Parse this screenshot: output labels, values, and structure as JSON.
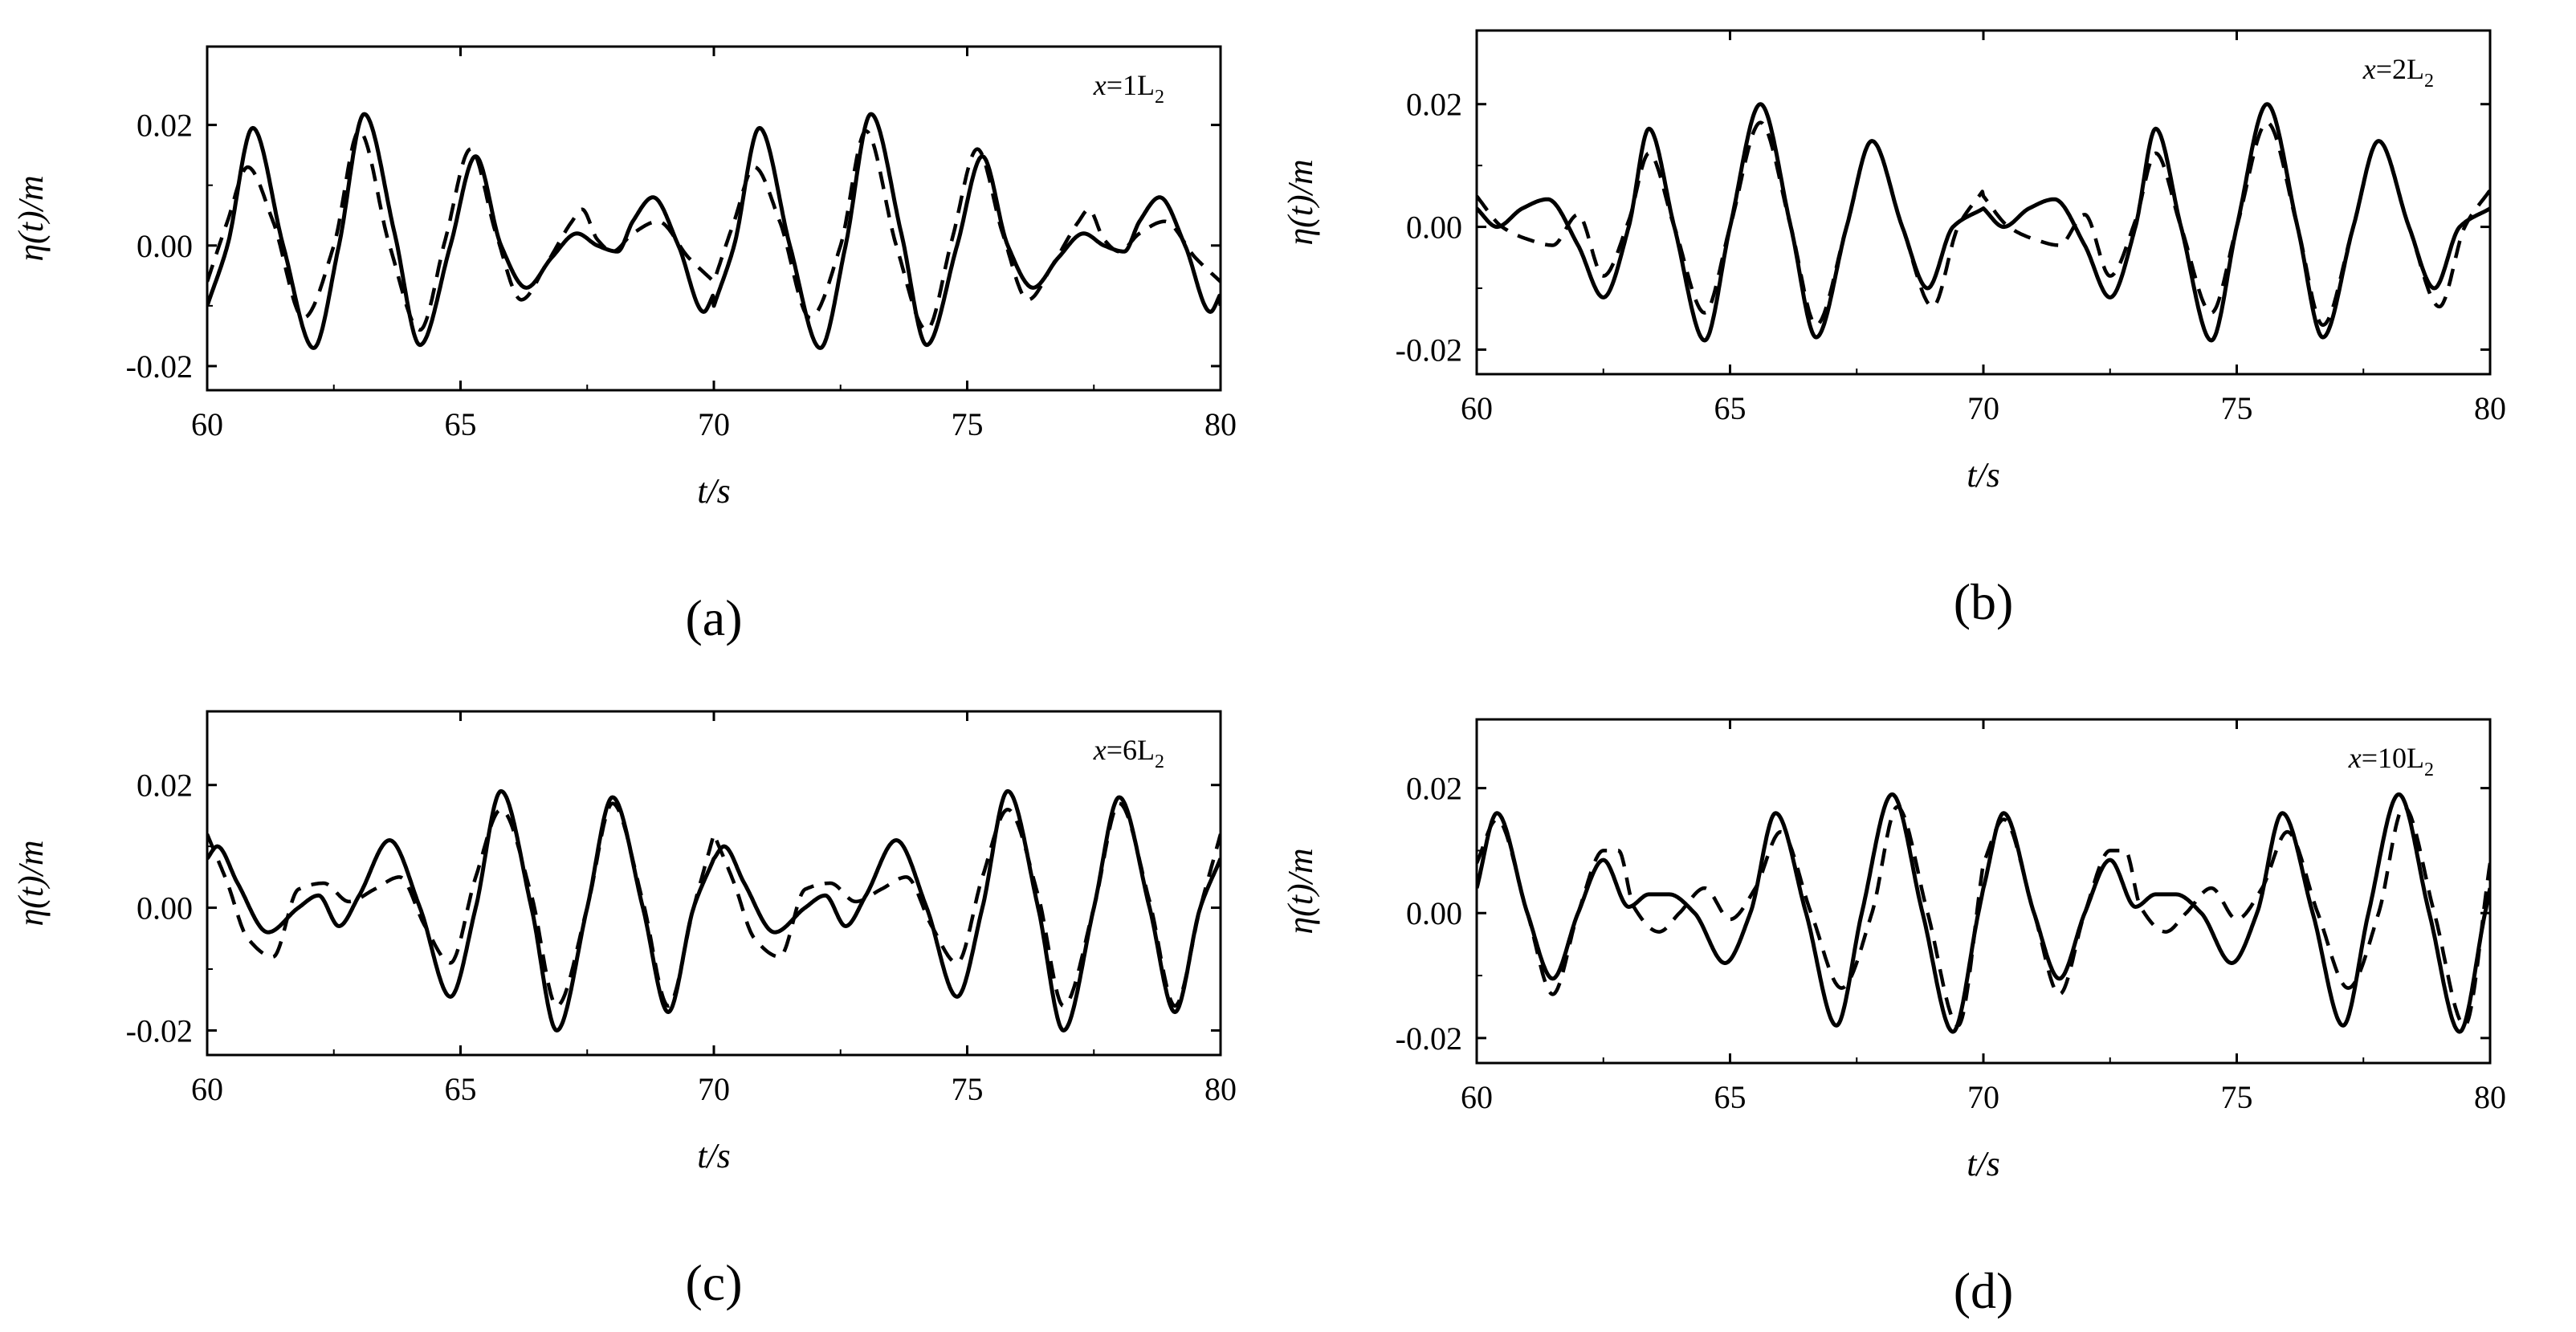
{
  "figure": {
    "description_note": "Four panels of surface elevation time series, solid and dashed curves",
    "line_color": "#000000"
  },
  "chart_data": [
    {
      "type": "line",
      "panel_label": "(a)",
      "annotation": {
        "prefix": "x",
        "eq": "=1L",
        "sub": "2"
      },
      "xlabel": "t/s",
      "ylabel": "η(t)/m",
      "xlim": [
        60,
        80
      ],
      "ylim": [
        -0.024,
        0.033
      ],
      "xticks": [
        60,
        65,
        70,
        75,
        80
      ],
      "xtick_labels": [
        "60",
        "65",
        "70",
        "75",
        "80"
      ],
      "yticks": [
        -0.02,
        0.0,
        0.02
      ],
      "ytick_labels": [
        "-0.02",
        "0.00",
        "0.02"
      ],
      "period": 10,
      "series": [
        {
          "name": "solid",
          "style": "solid",
          "x": [
            60.0,
            60.4,
            60.9,
            61.5,
            62.1,
            62.6,
            63.1,
            63.7,
            64.2,
            64.8,
            65.3,
            65.8,
            66.3,
            66.8,
            67.3,
            67.7,
            68.1,
            68.4,
            68.8,
            69.3,
            69.8,
            70.0
          ],
          "y": [
            -0.01,
            0.0,
            0.0195,
            0.0,
            -0.017,
            0.0,
            0.0218,
            0.002,
            -0.0165,
            0.0,
            0.0148,
            0.0,
            -0.007,
            -0.002,
            0.002,
            0.0,
            -0.001,
            0.004,
            0.008,
            0.0,
            -0.011,
            -0.008
          ]
        },
        {
          "name": "dashed",
          "style": "dashed",
          "x": [
            60.0,
            60.4,
            60.8,
            61.3,
            61.9,
            62.5,
            63.0,
            63.6,
            64.2,
            64.7,
            65.2,
            65.7,
            66.2,
            66.7,
            67.2,
            67.4,
            67.7,
            68.0,
            68.4,
            68.9,
            69.5,
            70.0
          ],
          "y": [
            -0.006,
            0.004,
            0.013,
            0.004,
            -0.012,
            0.0,
            0.019,
            0.0,
            -0.014,
            0.001,
            0.016,
            0.002,
            -0.009,
            -0.003,
            0.004,
            0.006,
            0.001,
            -0.001,
            0.002,
            0.004,
            -0.002,
            -0.006
          ]
        }
      ]
    },
    {
      "type": "line",
      "panel_label": "(b)",
      "annotation": {
        "prefix": "x",
        "eq": "=2L",
        "sub": "2"
      },
      "xlabel": "t/s",
      "ylabel": "η(t)/m",
      "xlim": [
        60,
        80
      ],
      "ylim": [
        -0.024,
        0.032
      ],
      "xticks": [
        60,
        65,
        70,
        75,
        80
      ],
      "xtick_labels": [
        "60",
        "65",
        "70",
        "75",
        "80"
      ],
      "yticks": [
        -0.02,
        0.0,
        0.02
      ],
      "ytick_labels": [
        "-0.02",
        "0.00",
        "0.02"
      ],
      "period": 10,
      "series": [
        {
          "name": "solid",
          "style": "solid",
          "x": [
            60.0,
            60.4,
            60.9,
            61.4,
            62.0,
            62.5,
            63.0,
            63.4,
            63.9,
            64.5,
            65.0,
            65.6,
            66.2,
            66.7,
            67.3,
            67.8,
            68.4,
            68.9,
            69.4,
            70.0
          ],
          "y": [
            0.003,
            0.0,
            0.003,
            0.0045,
            -0.003,
            -0.0115,
            0.0,
            0.016,
            0.0,
            -0.0185,
            0.0,
            0.02,
            0.0,
            -0.018,
            0.0,
            0.014,
            0.0,
            -0.01,
            0.0,
            0.003
          ]
        },
        {
          "name": "dashed",
          "style": "dashed",
          "x": [
            60.0,
            60.5,
            61.0,
            61.5,
            62.0,
            62.5,
            63.0,
            63.4,
            63.9,
            64.5,
            65.0,
            65.6,
            66.2,
            66.7,
            67.3,
            67.8,
            68.4,
            69.0,
            69.5,
            70.0
          ],
          "y": [
            0.005,
            0.0,
            -0.002,
            -0.003,
            0.002,
            -0.008,
            0.001,
            0.012,
            0.0,
            -0.014,
            0.0,
            0.017,
            0.0,
            -0.016,
            0.0,
            0.014,
            0.0,
            -0.013,
            0.0,
            0.006
          ]
        }
      ]
    },
    {
      "type": "line",
      "panel_label": "(c)",
      "annotation": {
        "prefix": "x",
        "eq": "=6L",
        "sub": "2"
      },
      "xlabel": "t/s",
      "ylabel": "η(t)/m",
      "xlim": [
        60,
        80
      ],
      "ylim": [
        -0.024,
        0.032
      ],
      "xticks": [
        60,
        65,
        70,
        75,
        80
      ],
      "xtick_labels": [
        "60",
        "65",
        "70",
        "75",
        "80"
      ],
      "yticks": [
        -0.02,
        0.0,
        0.02
      ],
      "ytick_labels": [
        "-0.02",
        "0.00",
        "0.02"
      ],
      "period": 10,
      "series": [
        {
          "name": "solid",
          "style": "solid",
          "x": [
            60.0,
            60.2,
            60.6,
            61.2,
            61.8,
            62.2,
            62.6,
            63.0,
            63.6,
            64.2,
            64.8,
            65.3,
            65.8,
            66.4,
            66.9,
            67.5,
            68.0,
            68.6,
            69.1,
            69.6,
            70.0
          ],
          "y": [
            0.008,
            0.01,
            0.004,
            -0.004,
            0.0,
            0.002,
            -0.003,
            0.002,
            0.011,
            0.0,
            -0.0145,
            0.0,
            0.019,
            0.0,
            -0.02,
            0.0,
            0.018,
            0.0,
            -0.017,
            0.0,
            0.008
          ]
        },
        {
          "name": "dashed",
          "style": "dashed",
          "x": [
            60.0,
            60.4,
            60.8,
            61.3,
            61.8,
            62.3,
            62.8,
            63.3,
            63.8,
            64.3,
            64.8,
            65.3,
            65.8,
            66.4,
            66.9,
            67.5,
            68.0,
            68.6,
            69.1,
            69.6,
            70.0
          ],
          "y": [
            0.012,
            0.004,
            -0.005,
            -0.008,
            0.003,
            0.004,
            0.001,
            0.003,
            0.005,
            -0.003,
            -0.009,
            0.005,
            0.016,
            0.002,
            -0.016,
            0.0,
            0.017,
            0.001,
            -0.016,
            0.0,
            0.012
          ]
        }
      ]
    },
    {
      "type": "line",
      "panel_label": "(d)",
      "annotation": {
        "prefix": "x",
        "eq": "=10L",
        "sub": "2"
      },
      "xlabel": "t/s",
      "ylabel": "η(t)/m",
      "xlim": [
        60,
        80
      ],
      "ylim": [
        -0.024,
        0.031
      ],
      "xticks": [
        60,
        65,
        70,
        75,
        80
      ],
      "xtick_labels": [
        "60",
        "65",
        "70",
        "75",
        "80"
      ],
      "yticks": [
        -0.02,
        0.0,
        0.02
      ],
      "ytick_labels": [
        "-0.02",
        "0.00",
        "0.02"
      ],
      "period": 10,
      "series": [
        {
          "name": "solid",
          "style": "solid",
          "x": [
            60.0,
            60.4,
            61.0,
            61.5,
            62.0,
            62.5,
            63.0,
            63.4,
            63.8,
            64.3,
            64.9,
            65.4,
            65.9,
            66.5,
            67.1,
            67.6,
            68.2,
            68.8,
            69.4,
            69.9,
            70.0
          ],
          "y": [
            0.004,
            0.016,
            0.0,
            -0.0105,
            0.0,
            0.0085,
            0.001,
            0.003,
            0.003,
            0.0,
            -0.008,
            0.0,
            0.016,
            0.0,
            -0.018,
            0.0,
            0.019,
            0.0,
            -0.019,
            0.0,
            0.004
          ]
        },
        {
          "name": "dashed",
          "style": "dashed",
          "x": [
            60.0,
            60.4,
            61.0,
            61.5,
            62.0,
            62.5,
            62.8,
            63.1,
            63.6,
            64.0,
            64.5,
            65.0,
            65.5,
            66.0,
            66.6,
            67.2,
            67.8,
            68.3,
            68.9,
            69.5,
            70.0
          ],
          "y": [
            0.008,
            0.015,
            0.0,
            -0.013,
            0.0,
            0.01,
            0.01,
            0.001,
            -0.003,
            0.0,
            0.004,
            -0.001,
            0.004,
            0.013,
            0.0,
            -0.012,
            0.0,
            0.017,
            0.0,
            -0.018,
            0.008
          ]
        }
      ]
    }
  ]
}
